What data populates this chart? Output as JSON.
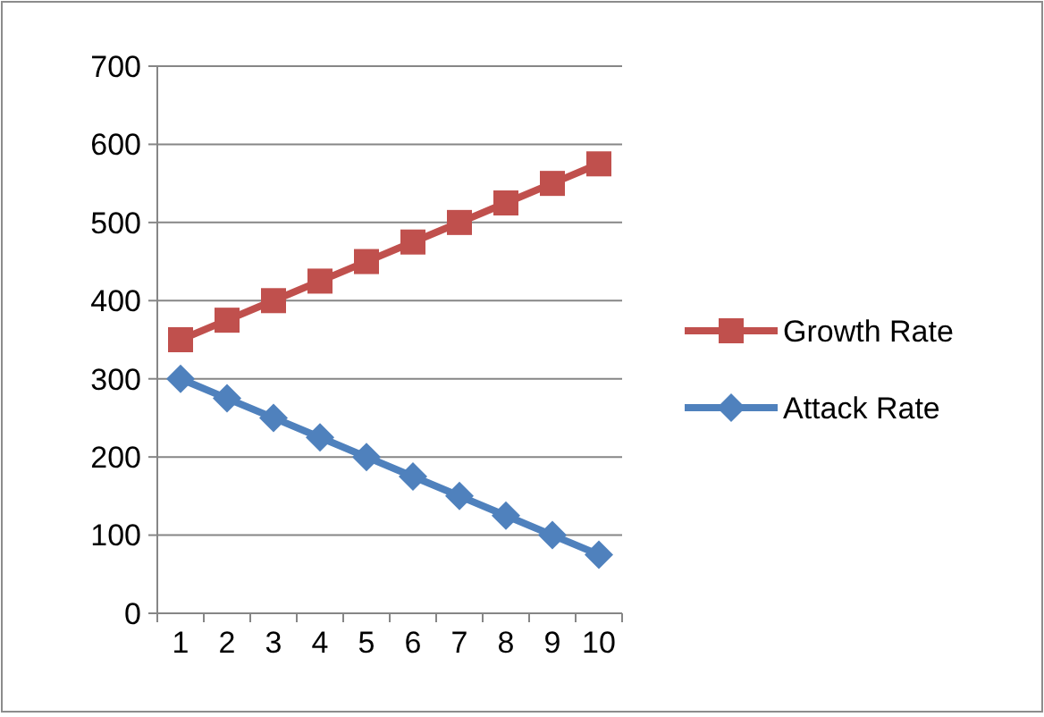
{
  "chart_data": {
    "type": "line",
    "categories": [
      "1",
      "2",
      "3",
      "4",
      "5",
      "6",
      "7",
      "8",
      "9",
      "10"
    ],
    "series": [
      {
        "name": "Growth Rate",
        "color": "#c0504d",
        "marker": "square",
        "values": [
          350,
          375,
          400,
          425,
          450,
          475,
          500,
          525,
          550,
          575
        ]
      },
      {
        "name": "Attack Rate",
        "color": "#4f81bd",
        "marker": "diamond",
        "values": [
          300,
          275,
          250,
          225,
          200,
          175,
          150,
          125,
          100,
          75
        ]
      }
    ],
    "ylim": [
      0,
      700
    ],
    "yticks": [
      0,
      100,
      200,
      300,
      400,
      500,
      600,
      700
    ],
    "grid": "y",
    "legend": "right",
    "line_style": "solid"
  }
}
